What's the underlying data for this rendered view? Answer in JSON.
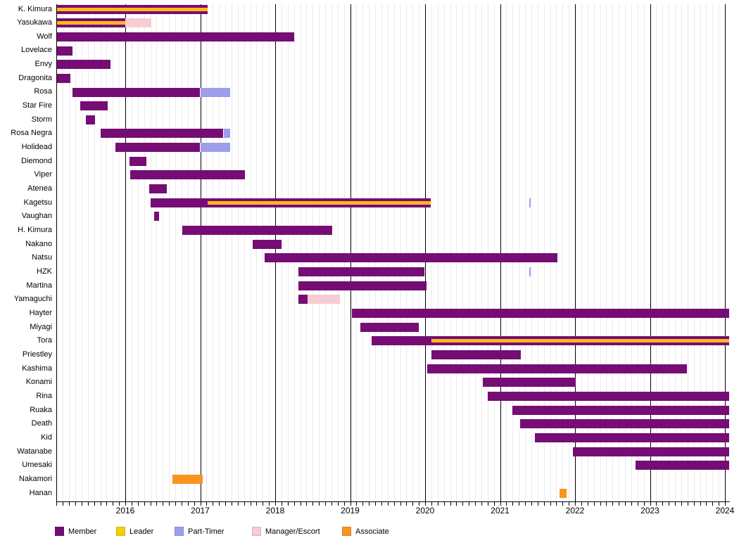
{
  "colors": {
    "member": "#750D75",
    "leader": "#F1CF00",
    "leader_stripe": "#FFB915",
    "part_timer": "#9D9DEC",
    "manager": "#F7CCD2",
    "associate": "#F7951F",
    "gridline_month": "#eaeaea",
    "gridline_year": "#000000"
  },
  "legend": {
    "items": [
      {
        "key": "member",
        "label": "Member"
      },
      {
        "key": "leader",
        "label": "Leader"
      },
      {
        "key": "part_timer",
        "label": "Part-Timer"
      },
      {
        "key": "manager",
        "label": "Manager/Escort"
      },
      {
        "key": "associate",
        "label": "Associate"
      }
    ]
  },
  "chart_data": {
    "type": "timeline",
    "x_axis": {
      "start": 2015.08,
      "end": 2024.06,
      "year_labels": [
        "2016",
        "2017",
        "2018",
        "2019",
        "2020",
        "2021",
        "2022",
        "2023",
        "2024"
      ],
      "minor_tick_interval": "month"
    },
    "rows": [
      {
        "name": "K. Kimura",
        "segments": [
          {
            "status": "member",
            "start": 2015.08,
            "end": 2017.1
          }
        ],
        "leader": [
          {
            "start": 2015.08,
            "end": 2017.1
          }
        ]
      },
      {
        "name": "Yasukawa",
        "segments": [
          {
            "status": "member",
            "start": 2015.08,
            "end": 2016.0
          },
          {
            "status": "manager",
            "start": 2016.0,
            "end": 2016.35
          }
        ],
        "leader": [
          {
            "start": 2015.08,
            "end": 2016.0
          }
        ]
      },
      {
        "name": "Wolf",
        "segments": [
          {
            "status": "member",
            "start": 2015.08,
            "end": 2018.25
          }
        ]
      },
      {
        "name": "Lovelace",
        "segments": [
          {
            "status": "member",
            "start": 2015.08,
            "end": 2015.3
          }
        ]
      },
      {
        "name": "Envy",
        "segments": [
          {
            "status": "member",
            "start": 2015.08,
            "end": 2015.8
          }
        ]
      },
      {
        "name": "Dragonita",
        "segments": [
          {
            "status": "member",
            "start": 2015.08,
            "end": 2015.27
          }
        ]
      },
      {
        "name": "Rosa",
        "segments": [
          {
            "status": "member",
            "start": 2015.3,
            "end": 2017.0
          },
          {
            "status": "part_timer",
            "start": 2017.0,
            "end": 2017.4
          }
        ]
      },
      {
        "name": "Star Fire",
        "segments": [
          {
            "status": "member",
            "start": 2015.4,
            "end": 2015.77
          }
        ]
      },
      {
        "name": "Storm",
        "segments": [
          {
            "status": "member",
            "start": 2015.47,
            "end": 2015.6
          }
        ]
      },
      {
        "name": "Rosa Negra",
        "segments": [
          {
            "status": "member",
            "start": 2015.67,
            "end": 2017.31
          },
          {
            "status": "part_timer",
            "start": 2017.31,
            "end": 2017.4
          }
        ]
      },
      {
        "name": "Holidead",
        "segments": [
          {
            "status": "member",
            "start": 2015.87,
            "end": 2017.0
          },
          {
            "status": "part_timer",
            "start": 2017.0,
            "end": 2017.4
          }
        ]
      },
      {
        "name": "Diemond",
        "segments": [
          {
            "status": "member",
            "start": 2016.06,
            "end": 2016.28
          }
        ]
      },
      {
        "name": "Viper",
        "segments": [
          {
            "status": "member",
            "start": 2016.07,
            "end": 2017.6
          }
        ]
      },
      {
        "name": "Atenea",
        "segments": [
          {
            "status": "member",
            "start": 2016.32,
            "end": 2016.55
          }
        ]
      },
      {
        "name": "Kagetsu",
        "segments": [
          {
            "status": "member",
            "start": 2016.34,
            "end": 2020.08
          },
          {
            "status": "part_timer",
            "start": 2021.39,
            "end": 2021.41
          }
        ],
        "leader": [
          {
            "start": 2017.1,
            "end": 2020.08
          }
        ]
      },
      {
        "name": "Vaughan",
        "segments": [
          {
            "status": "member",
            "start": 2016.38,
            "end": 2016.45
          }
        ]
      },
      {
        "name": "H. Kimura",
        "segments": [
          {
            "status": "member",
            "start": 2016.76,
            "end": 2018.76
          }
        ]
      },
      {
        "name": "Nakano",
        "segments": [
          {
            "status": "member",
            "start": 2017.7,
            "end": 2018.08
          }
        ]
      },
      {
        "name": "Natsu",
        "segments": [
          {
            "status": "member",
            "start": 2017.86,
            "end": 2021.77
          }
        ]
      },
      {
        "name": "HZK",
        "segments": [
          {
            "status": "member",
            "start": 2018.31,
            "end": 2019.99
          },
          {
            "status": "part_timer",
            "start": 2021.39,
            "end": 2021.41
          }
        ]
      },
      {
        "name": "Martina",
        "segments": [
          {
            "status": "member",
            "start": 2018.31,
            "end": 2020.02
          }
        ]
      },
      {
        "name": "Yamaguchi",
        "segments": [
          {
            "status": "member",
            "start": 2018.31,
            "end": 2018.43
          },
          {
            "status": "manager",
            "start": 2018.43,
            "end": 2018.86
          }
        ]
      },
      {
        "name": "Hayter",
        "segments": [
          {
            "status": "member",
            "start": 2019.02,
            "end": 2024.06
          }
        ]
      },
      {
        "name": "Miyagi",
        "segments": [
          {
            "status": "member",
            "start": 2019.14,
            "end": 2019.92
          }
        ]
      },
      {
        "name": "Tora",
        "segments": [
          {
            "status": "member",
            "start": 2019.29,
            "end": 2024.06
          }
        ],
        "leader": [
          {
            "start": 2020.08,
            "end": 2024.06
          }
        ]
      },
      {
        "name": "Priestley",
        "segments": [
          {
            "status": "member",
            "start": 2020.08,
            "end": 2021.28
          }
        ]
      },
      {
        "name": "Kashima",
        "segments": [
          {
            "status": "member",
            "start": 2020.03,
            "end": 2023.49
          }
        ]
      },
      {
        "name": "Konami",
        "segments": [
          {
            "status": "member",
            "start": 2020.77,
            "end": 2022.01
          }
        ]
      },
      {
        "name": "Rina",
        "segments": [
          {
            "status": "member",
            "start": 2020.84,
            "end": 2024.06
          }
        ]
      },
      {
        "name": "Ruaka",
        "segments": [
          {
            "status": "member",
            "start": 2021.16,
            "end": 2024.06
          }
        ]
      },
      {
        "name": "Death",
        "segments": [
          {
            "status": "member",
            "start": 2021.27,
            "end": 2024.06
          }
        ]
      },
      {
        "name": "Kid",
        "segments": [
          {
            "status": "member",
            "start": 2021.46,
            "end": 2024.06
          }
        ]
      },
      {
        "name": "Watanabe",
        "segments": [
          {
            "status": "member",
            "start": 2021.97,
            "end": 2024.06
          }
        ]
      },
      {
        "name": "Umesaki",
        "segments": [
          {
            "status": "member",
            "start": 2022.81,
            "end": 2024.06
          }
        ]
      },
      {
        "name": "Nakamori",
        "segments": [
          {
            "status": "associate",
            "start": 2016.63,
            "end": 2017.03
          }
        ]
      },
      {
        "name": "Hanan",
        "segments": [
          {
            "status": "associate",
            "start": 2021.79,
            "end": 2021.89
          }
        ]
      }
    ]
  }
}
